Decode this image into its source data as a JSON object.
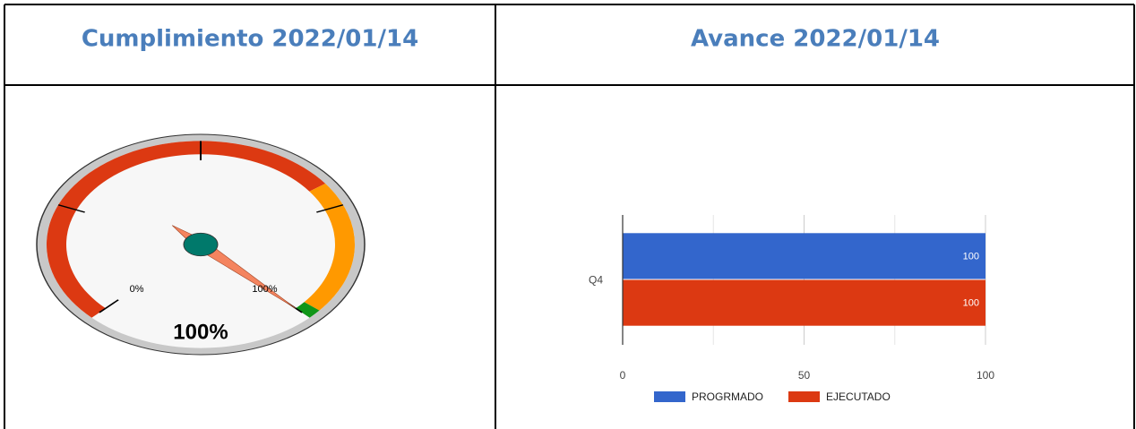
{
  "chart_data": [
    {
      "type": "gauge",
      "title": "Cumplimiento 2022/01/14",
      "range": [
        0,
        100
      ],
      "value": 100,
      "value_label": "100%",
      "ticks": [
        {
          "value": 0,
          "label": "0%"
        },
        {
          "value": 100,
          "label": "100%"
        }
      ],
      "minor_ticks": [
        25,
        50,
        75
      ],
      "bands": [
        {
          "from": 0,
          "to": 70,
          "color": "#dc3912"
        },
        {
          "from": 70,
          "to": 98,
          "color": "#ff9900"
        },
        {
          "from": 98,
          "to": 100,
          "color": "#109618"
        }
      ],
      "needle_color": "#f4845f",
      "hub_color": "#00796b"
    },
    {
      "type": "bar",
      "orientation": "horizontal",
      "title": "Avance 2022/01/14",
      "categories": [
        "Q4"
      ],
      "series": [
        {
          "name": "PROGRMADO",
          "color": "#3366cc",
          "values": [
            100
          ]
        },
        {
          "name": "EJECUTADO",
          "color": "#dc3912",
          "values": [
            100
          ]
        }
      ],
      "xlim": [
        0,
        100
      ],
      "xticks": [
        0,
        50,
        100
      ],
      "minor_xticks": [
        25,
        75
      ],
      "grid": true,
      "data_labels": true,
      "legend": "bottom"
    }
  ]
}
